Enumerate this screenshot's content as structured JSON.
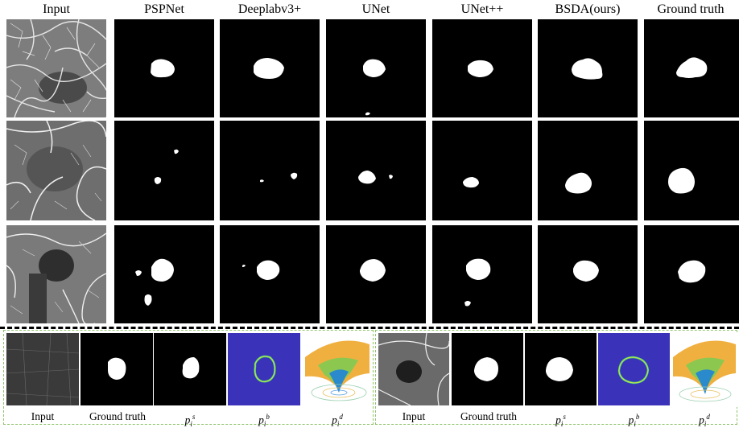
{
  "columns": [
    "Input",
    "PSPNet",
    "Deeplabv3+",
    "UNet",
    "UNet++",
    "BSDA(ours)",
    "Ground truth"
  ],
  "bottom_captions": {
    "input": "Input",
    "ground_truth": "Ground truth",
    "p_symbol": "p",
    "p_sub": "i",
    "s_sup": "s",
    "b_sup": "b",
    "d_sup": "d"
  },
  "colors": {
    "panel_border": "#8fc46b",
    "heatmap_bg": "#3a32b8",
    "mask": "#ffffff"
  }
}
